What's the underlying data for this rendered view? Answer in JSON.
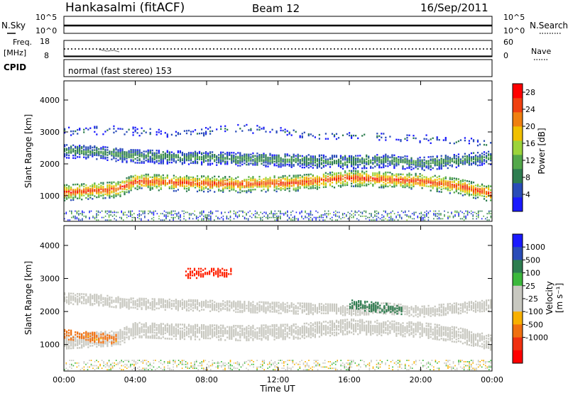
{
  "header": {
    "station": "Hankasalmi (fitACF)",
    "beam": "Beam 12",
    "date": "16/Sep/2011"
  },
  "strip_panels": {
    "nsky": {
      "left_label": "N.Sky",
      "right_label": "N.Search",
      "left_ticks": [
        "10^5",
        "10^0"
      ],
      "right_ticks": [
        "10^5",
        "10^0"
      ]
    },
    "freq": {
      "left_label_1": "Freq.",
      "left_label_2": "[MHz]",
      "right_label": "Nave",
      "left_ticks": [
        "18",
        "8"
      ],
      "right_ticks": [
        "60",
        "0"
      ]
    },
    "cpid": {
      "label": "CPID",
      "mode_text": "normal (fast stereo) 153"
    }
  },
  "colors": {
    "power_scale": [
      "#1a1aff",
      "#2a4cb8",
      "#2e7d50",
      "#53a84a",
      "#9cd43a",
      "#f0c000",
      "#f08010",
      "#f04010",
      "#ff0000"
    ],
    "velocity_scale": [
      "#ff0000",
      "#f03010",
      "#f07010",
      "#f8b000",
      "#c8c8c0",
      "#c8c8c0",
      "#3cb83c",
      "#2e7d50",
      "#2a4cb8",
      "#1a1aff"
    ]
  },
  "chart_data": [
    {
      "type": "heatmap",
      "id": "power",
      "ylabel": "Slant Range [km]",
      "x_ticks": [
        "00:00",
        "04:00",
        "08:00",
        "12:00",
        "16:00",
        "20:00",
        "00:00"
      ],
      "y_ticks": [
        1000,
        2000,
        3000,
        4000
      ],
      "ylim": [
        200,
        4600
      ],
      "xlim_hours": [
        0,
        24
      ],
      "colorbar": {
        "label": "Power [dB]",
        "ticks": [
          4,
          8,
          12,
          16,
          20,
          24,
          28
        ],
        "range": [
          0,
          30
        ]
      },
      "bands": [
        {
          "name": "main echo band",
          "x_hours": [
            0,
            3,
            4,
            6,
            10,
            13,
            16,
            18,
            20,
            22,
            24
          ],
          "range_km": [
            1100,
            1200,
            1450,
            1400,
            1350,
            1400,
            1550,
            1500,
            1450,
            1300,
            1050
          ],
          "power_db": 26
        },
        {
          "name": "upper band",
          "x_hours": [
            0,
            2,
            3.5,
            16,
            18,
            20,
            22,
            24
          ],
          "range_km": [
            2400,
            2350,
            2250,
            2050,
            2100,
            2000,
            2100,
            2200
          ],
          "power_db": 10
        },
        {
          "name": "high sparse band",
          "x_hours": [
            0,
            3,
            6,
            10,
            14,
            18,
            22,
            24
          ],
          "range_km": [
            3000,
            3050,
            2900,
            3100,
            2900,
            2850,
            2700,
            2600
          ],
          "power_db": 6
        }
      ]
    },
    {
      "type": "heatmap",
      "id": "velocity",
      "ylabel": "Slant Range [km]",
      "xlabel": "Time UT",
      "x_ticks": [
        "00:00",
        "04:00",
        "08:00",
        "12:00",
        "16:00",
        "20:00",
        "00:00"
      ],
      "y_ticks": [
        1000,
        2000,
        3000,
        4000
      ],
      "ylim": [
        200,
        4600
      ],
      "xlim_hours": [
        0,
        24
      ],
      "colorbar": {
        "label_main": "Velocity",
        "label_unit": "[m s⁻¹]",
        "ticks": [
          "1000",
          "500",
          "100",
          "25",
          "-25",
          "-100",
          "-500",
          "-1000"
        ]
      },
      "bands": [
        {
          "name": "ground scatter band",
          "x_hours": [
            0,
            3,
            4,
            6,
            10,
            13,
            16,
            18,
            20,
            22,
            24
          ],
          "range_km": [
            1100,
            1200,
            1450,
            1400,
            1350,
            1400,
            1550,
            1500,
            1450,
            1300,
            1050
          ],
          "velocity_ms": 0
        },
        {
          "name": "upper band",
          "x_hours": [
            0,
            2,
            3.5,
            16,
            18,
            20,
            22,
            24
          ],
          "range_km": [
            2400,
            2350,
            2250,
            2050,
            2100,
            2000,
            2100,
            2200
          ],
          "velocity_ms": 0
        },
        {
          "name": "early westward patch",
          "x_hours": [
            0,
            1,
            2,
            3
          ],
          "range_km": [
            1300,
            1250,
            1200,
            1150
          ],
          "velocity_ms": -150
        },
        {
          "name": "late eastward patch",
          "x_hours": [
            16,
            17,
            18,
            19
          ],
          "range_km": [
            2200,
            2150,
            2100,
            2050
          ],
          "velocity_ms": 200
        },
        {
          "name": "upper westward patch",
          "x_hours": [
            6.8,
            7.5,
            8.5,
            9.4
          ],
          "range_km": [
            3150,
            3150,
            3150,
            3150
          ],
          "velocity_ms": -800
        }
      ]
    }
  ]
}
